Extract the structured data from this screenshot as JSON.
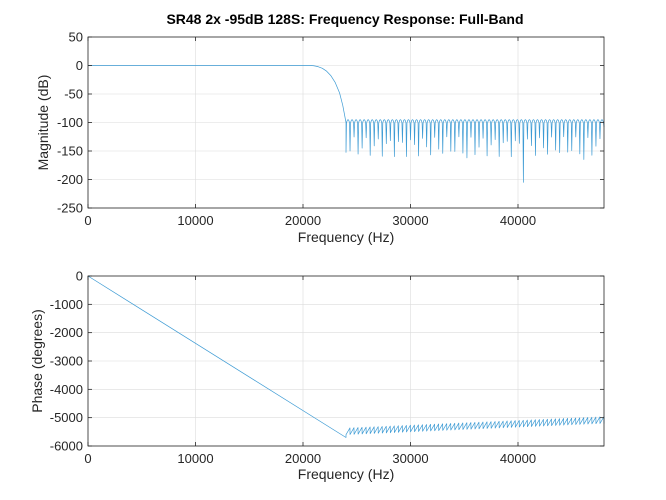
{
  "colors": {
    "line": "#3d9bd4",
    "grid": "#dcdcdc",
    "axis": "#262626",
    "background": "#ffffff"
  },
  "chart_data": [
    {
      "type": "line",
      "title": "SR48 2x -95dB 128S: Frequency Response: Full-Band",
      "xlabel": "Frequency (Hz)",
      "ylabel": "Magnitude (dB)",
      "xlim": [
        0,
        48000
      ],
      "ylim": [
        -250,
        50
      ],
      "xticks": [
        0,
        10000,
        20000,
        30000,
        40000
      ],
      "xtick_labels": [
        "0",
        "10000",
        "20000",
        "30000",
        "40000"
      ],
      "yticks": [
        50,
        0,
        -50,
        -100,
        -150,
        -200,
        -250
      ],
      "ytick_labels": [
        "50",
        "0",
        "-50",
        "-100",
        "-150",
        "-200",
        "-250"
      ],
      "grid": true,
      "series": [
        {
          "passband": {
            "x_start": 0,
            "x_end": 20700,
            "value": 0
          },
          "rolloff": {
            "x": [
              20700,
              21000,
              21400,
              21800,
              22200,
              22600,
              23000,
              23400,
              23700,
              24000
            ],
            "y": [
              0,
              -0.5,
              -2,
              -5,
              -10,
              -18,
              -30,
              -48,
              -70,
              -100
            ]
          },
          "stopband": {
            "x_start": 24000,
            "x_end": 48000,
            "lobe_spacing_hz": 375,
            "lobe_peak": -95,
            "lobe_min": -108,
            "notch_range": [
              -125,
              -160
            ],
            "deep_notches": [
              {
                "x": 24200,
                "y": -175
              },
              {
                "x": 24500,
                "y": -150
              },
              {
                "x": 35200,
                "y": -162
              },
              {
                "x": 40500,
                "y": -205
              },
              {
                "x": 46300,
                "y": -165
              }
            ]
          }
        }
      ]
    },
    {
      "type": "line",
      "title": "",
      "xlabel": "Frequency (Hz)",
      "ylabel": "Phase (degrees)",
      "xlim": [
        0,
        48000
      ],
      "ylim": [
        -6000,
        0
      ],
      "xticks": [
        0,
        10000,
        20000,
        30000,
        40000
      ],
      "xtick_labels": [
        "0",
        "10000",
        "20000",
        "30000",
        "40000"
      ],
      "yticks": [
        0,
        -1000,
        -2000,
        -3000,
        -4000,
        -5000,
        -6000
      ],
      "ytick_labels": [
        "0",
        "-1000",
        "-2000",
        "-3000",
        "-4000",
        "-5000",
        "-6000"
      ],
      "grid": true,
      "series": [
        {
          "linear": {
            "x": [
              0,
              24000
            ],
            "y": [
              0,
              -5700
            ]
          },
          "sawtooth": {
            "x_start": 24000,
            "x_end": 48000,
            "period_hz": 375,
            "y_at_start": -5400,
            "y_at_end": -5000,
            "amplitude": 200
          }
        }
      ]
    }
  ]
}
